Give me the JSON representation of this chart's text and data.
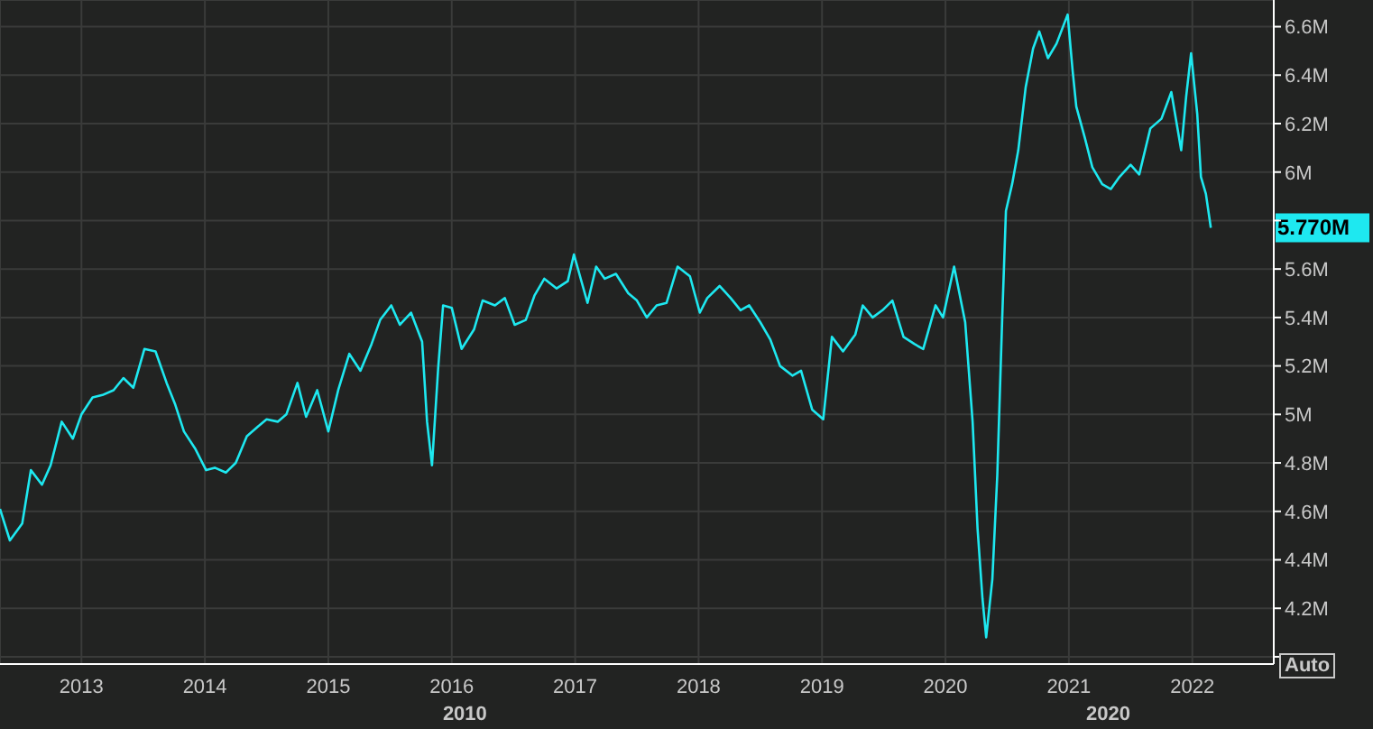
{
  "chart_data": {
    "type": "line",
    "x": [
      2012.34,
      2012.42,
      2012.52,
      2012.59,
      2012.68,
      2012.75,
      2012.84,
      2012.93,
      2013.0,
      2013.09,
      2013.17,
      2013.26,
      2013.34,
      2013.42,
      2013.51,
      2013.6,
      2013.69,
      2013.76,
      2013.83,
      2013.92,
      2014.01,
      2014.08,
      2014.17,
      2014.25,
      2014.34,
      2014.43,
      2014.5,
      2014.59,
      2014.66,
      2014.75,
      2014.82,
      2014.91,
      2015.0,
      2015.08,
      2015.17,
      2015.26,
      2015.35,
      2015.42,
      2015.51,
      2015.58,
      2015.67,
      2015.76,
      2015.8,
      2015.84,
      2015.89,
      2015.93,
      2016.0,
      2016.08,
      2016.18,
      2016.25,
      2016.35,
      2016.43,
      2016.51,
      2016.6,
      2016.67,
      2016.75,
      2016.85,
      2016.94,
      2016.99,
      2017.1,
      2017.17,
      2017.24,
      2017.33,
      2017.43,
      2017.5,
      2017.58,
      2017.66,
      2017.74,
      2017.83,
      2017.93,
      2018.01,
      2018.07,
      2018.17,
      2018.26,
      2018.34,
      2018.41,
      2018.5,
      2018.58,
      2018.66,
      2018.76,
      2018.83,
      2018.92,
      2019.01,
      2019.08,
      2019.17,
      2019.27,
      2019.33,
      2019.41,
      2019.49,
      2019.57,
      2019.66,
      2019.75,
      2019.82,
      2019.92,
      2019.98,
      2020.07,
      2020.16,
      2020.22,
      2020.26,
      2020.3,
      2020.33,
      2020.38,
      2020.42,
      2020.46,
      2020.49,
      2020.54,
      2020.59,
      2020.65,
      2020.71,
      2020.76,
      2020.83,
      2020.9,
      2020.99,
      2021.03,
      2021.06,
      2021.13,
      2021.19,
      2021.27,
      2021.34,
      2021.41,
      2021.5,
      2021.57,
      2021.66,
      2021.75,
      2021.83,
      2021.91,
      2021.95,
      2021.99,
      2022.04,
      2022.07,
      2022.11,
      2022.15
    ],
    "series": [
      {
        "color": "#1ee8f0",
        "values": [
          4.61,
          4.48,
          4.55,
          4.77,
          4.71,
          4.79,
          4.97,
          4.9,
          5.0,
          5.07,
          5.08,
          5.1,
          5.15,
          5.11,
          5.27,
          5.26,
          5.13,
          5.04,
          4.93,
          4.86,
          4.77,
          4.78,
          4.76,
          4.8,
          4.91,
          4.95,
          4.98,
          4.97,
          5.0,
          5.13,
          4.99,
          5.1,
          4.93,
          5.1,
          5.25,
          5.18,
          5.29,
          5.39,
          5.45,
          5.37,
          5.42,
          5.3,
          4.97,
          4.79,
          5.19,
          5.45,
          5.44,
          5.27,
          5.35,
          5.47,
          5.45,
          5.48,
          5.37,
          5.39,
          5.49,
          5.56,
          5.52,
          5.55,
          5.66,
          5.46,
          5.61,
          5.56,
          5.58,
          5.5,
          5.47,
          5.4,
          5.45,
          5.46,
          5.61,
          5.57,
          5.42,
          5.48,
          5.53,
          5.48,
          5.43,
          5.45,
          5.38,
          5.31,
          5.2,
          5.16,
          5.18,
          5.02,
          4.98,
          5.32,
          5.26,
          5.33,
          5.45,
          5.4,
          5.43,
          5.47,
          5.32,
          5.29,
          5.27,
          5.45,
          5.4,
          5.61,
          5.38,
          4.97,
          4.53,
          4.24,
          4.08,
          4.32,
          4.75,
          5.4,
          5.84,
          5.95,
          6.09,
          6.35,
          6.51,
          6.58,
          6.47,
          6.53,
          6.65,
          6.42,
          6.27,
          6.14,
          6.02,
          5.95,
          5.93,
          5.98,
          6.03,
          5.99,
          6.18,
          6.22,
          6.33,
          6.09,
          6.31,
          6.49,
          6.24,
          5.98,
          5.91,
          5.77
        ]
      }
    ],
    "xlim": [
      2012.34,
      2022.66
    ],
    "xticks": [
      2013,
      2014,
      2015,
      2016,
      2017,
      2018,
      2019,
      2020,
      2021,
      2022
    ],
    "ylim": [
      3.97,
      6.71
    ],
    "yticks": [
      {
        "value": 4,
        "label": null
      },
      {
        "value": 4.2,
        "label": "4.2M"
      },
      {
        "value": 4.4,
        "label": "4.4M"
      },
      {
        "value": 4.6,
        "label": "4.6M"
      },
      {
        "value": 4.8,
        "label": "4.8M"
      },
      {
        "value": 5,
        "label": "5M"
      },
      {
        "value": 5.2,
        "label": "5.2M"
      },
      {
        "value": 5.4,
        "label": "5.4M"
      },
      {
        "value": 5.6,
        "label": "5.6M"
      },
      {
        "value": 5.8,
        "label": null
      },
      {
        "value": 6,
        "label": "6M"
      },
      {
        "value": 6.2,
        "label": "6.2M"
      },
      {
        "value": 6.4,
        "label": "6.4M"
      },
      {
        "value": 6.6,
        "label": "6.6M"
      }
    ],
    "annotations": [
      "5.770M",
      "Auto",
      "2010",
      "2020"
    ],
    "grid": true,
    "marker": "none",
    "line_style": "solid"
  }
}
